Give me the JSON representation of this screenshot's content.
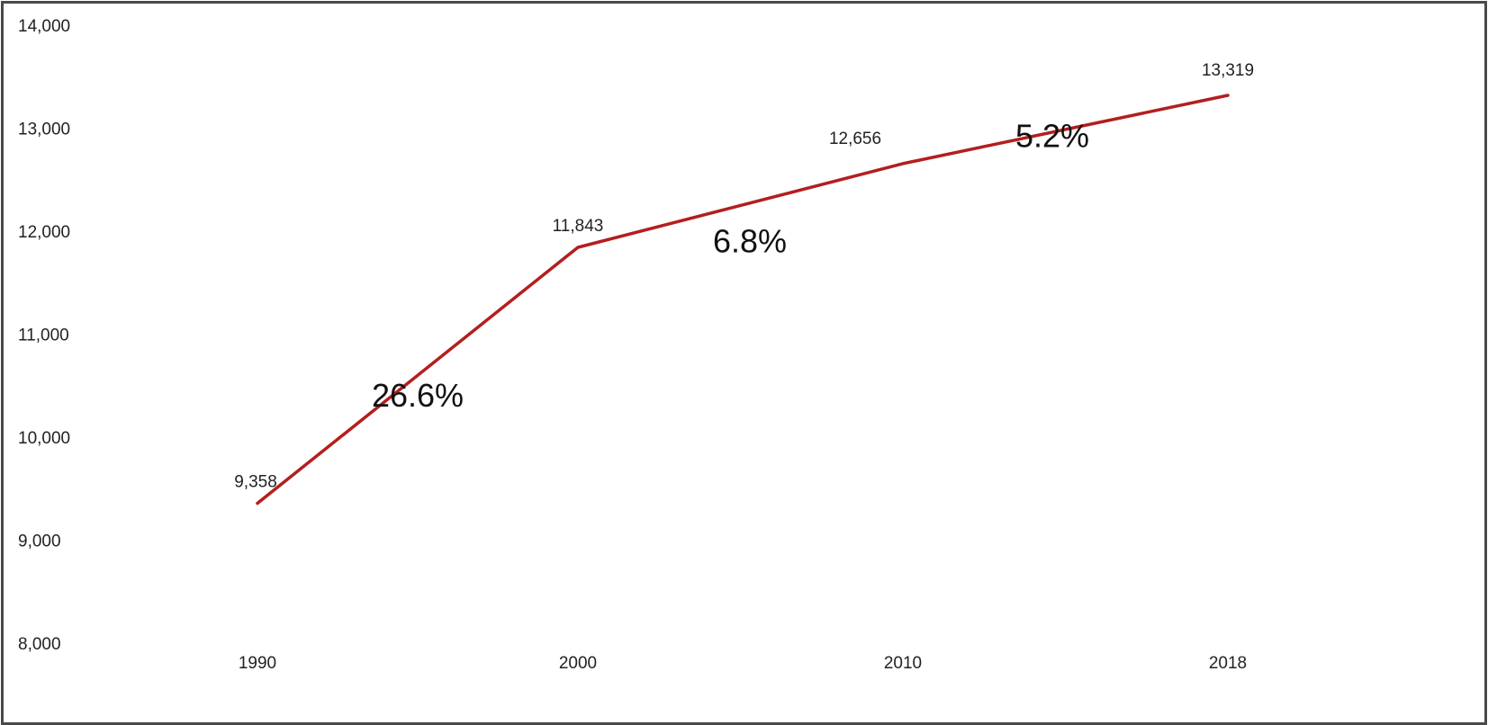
{
  "chart_data": {
    "type": "line",
    "title": "",
    "xlabel": "",
    "ylabel": "",
    "x": [
      "1990",
      "2000",
      "2010",
      "2018"
    ],
    "series": [
      {
        "values": [
          9358,
          11843,
          12656,
          13319
        ],
        "color": "#b41e1e"
      }
    ],
    "data_labels": [
      "9,358",
      "11,843",
      "12,656",
      "13,319"
    ],
    "y_ticks": [
      "14,000",
      "13,000",
      "12,000",
      "11,000",
      "10,000",
      "9,000",
      "8,000"
    ],
    "ylim": [
      8000,
      14000
    ],
    "grid": false,
    "legend": "none",
    "annotations": [
      {
        "text": "26.6%",
        "between": [
          "1990",
          "2000"
        ]
      },
      {
        "text": "6.8%",
        "between": [
          "2000",
          "2010"
        ]
      },
      {
        "text": "5.2%",
        "between": [
          "2010",
          "2018"
        ]
      }
    ]
  }
}
